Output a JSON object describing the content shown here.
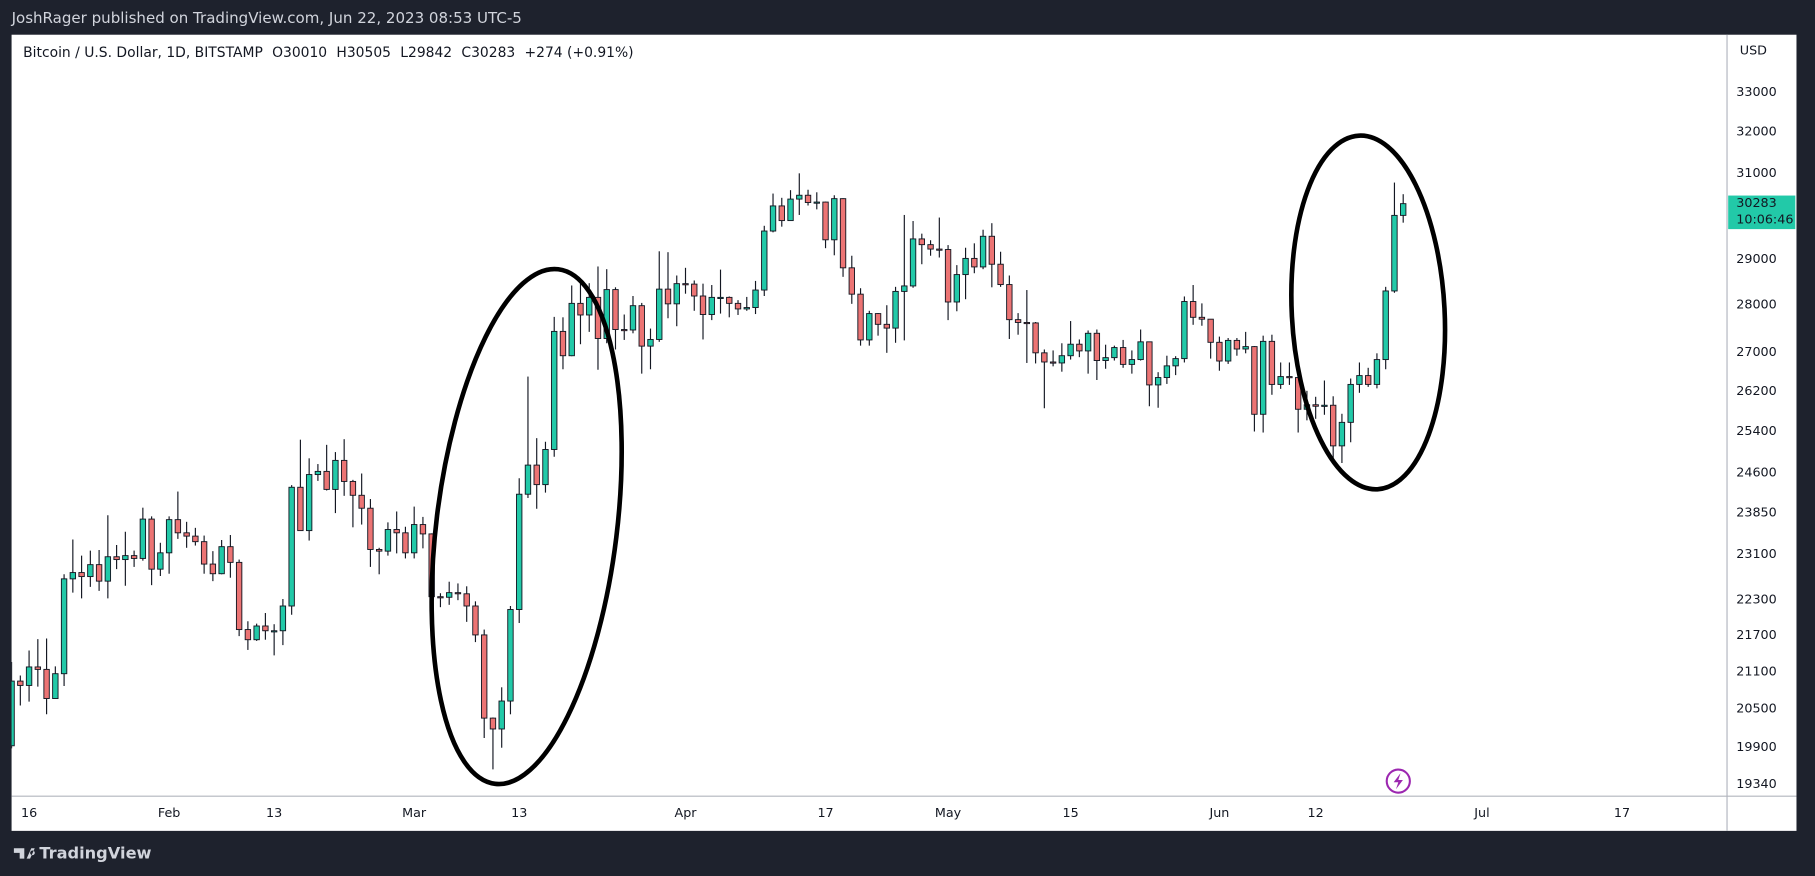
{
  "header": "JoshRager published on TradingView.com, Jun 22, 2023 08:53 UTC-5",
  "footer_brand": "TradingView",
  "chart_data": {
    "type": "candlestick",
    "title": "Bitcoin / U.S. Dollar, 1D, BITSTAMP",
    "ohlc_labels": [
      "O",
      "H",
      "L",
      "C"
    ],
    "change": "+274 (+0.91%)",
    "currency": "USD",
    "countdown": "10:06:46",
    "log_scale": true,
    "grid": false,
    "up_color": "#22c9a8",
    "down_color": "#ec7474",
    "wick_color": "#131722",
    "x": [
      "2023-01-14",
      "2023-01-15",
      "2023-01-16",
      "2023-01-17",
      "2023-01-18",
      "2023-01-19",
      "2023-01-20",
      "2023-01-21",
      "2023-01-22",
      "2023-01-23",
      "2023-01-24",
      "2023-01-25",
      "2023-01-26",
      "2023-01-27",
      "2023-01-28",
      "2023-01-29",
      "2023-01-30",
      "2023-01-31",
      "2023-02-01",
      "2023-02-02",
      "2023-02-03",
      "2023-02-04",
      "2023-02-05",
      "2023-02-06",
      "2023-02-07",
      "2023-02-08",
      "2023-02-09",
      "2023-02-10",
      "2023-02-11",
      "2023-02-12",
      "2023-02-13",
      "2023-02-14",
      "2023-02-15",
      "2023-02-16",
      "2023-02-17",
      "2023-02-18",
      "2023-02-19",
      "2023-02-20",
      "2023-02-21",
      "2023-02-22",
      "2023-02-23",
      "2023-02-24",
      "2023-02-25",
      "2023-02-26",
      "2023-02-27",
      "2023-02-28",
      "2023-03-01",
      "2023-03-02",
      "2023-03-03",
      "2023-03-04",
      "2023-03-05",
      "2023-03-06",
      "2023-03-07",
      "2023-03-08",
      "2023-03-09",
      "2023-03-10",
      "2023-03-11",
      "2023-03-12",
      "2023-03-13",
      "2023-03-14",
      "2023-03-15",
      "2023-03-16",
      "2023-03-17",
      "2023-03-18",
      "2023-03-19",
      "2023-03-20",
      "2023-03-21",
      "2023-03-22",
      "2023-03-23",
      "2023-03-24",
      "2023-03-25",
      "2023-03-26",
      "2023-03-27",
      "2023-03-28",
      "2023-03-29",
      "2023-03-30",
      "2023-03-31",
      "2023-04-01",
      "2023-04-02",
      "2023-04-03",
      "2023-04-04",
      "2023-04-05",
      "2023-04-06",
      "2023-04-07",
      "2023-04-08",
      "2023-04-09",
      "2023-04-10",
      "2023-04-11",
      "2023-04-12",
      "2023-04-13",
      "2023-04-14",
      "2023-04-15",
      "2023-04-16",
      "2023-04-17",
      "2023-04-18",
      "2023-04-19",
      "2023-04-20",
      "2023-04-21",
      "2023-04-22",
      "2023-04-23",
      "2023-04-24",
      "2023-04-25",
      "2023-04-26",
      "2023-04-27",
      "2023-04-28",
      "2023-04-29",
      "2023-04-30",
      "2023-05-01",
      "2023-05-02",
      "2023-05-03",
      "2023-05-04",
      "2023-05-05",
      "2023-05-06",
      "2023-05-07",
      "2023-05-08",
      "2023-05-09",
      "2023-05-10",
      "2023-05-11",
      "2023-05-12",
      "2023-05-13",
      "2023-05-14",
      "2023-05-15",
      "2023-05-16",
      "2023-05-17",
      "2023-05-18",
      "2023-05-19",
      "2023-05-20",
      "2023-05-21",
      "2023-05-22",
      "2023-05-23",
      "2023-05-24",
      "2023-05-25",
      "2023-05-26",
      "2023-05-27",
      "2023-05-28",
      "2023-05-29",
      "2023-05-30",
      "2023-05-31",
      "2023-06-01",
      "2023-06-02",
      "2023-06-03",
      "2023-06-04",
      "2023-06-05",
      "2023-06-06",
      "2023-06-07",
      "2023-06-08",
      "2023-06-09",
      "2023-06-10",
      "2023-06-11",
      "2023-06-12",
      "2023-06-13",
      "2023-06-14",
      "2023-06-15",
      "2023-06-16",
      "2023-06-17",
      "2023-06-18",
      "2023-06-19",
      "2023-06-20",
      "2023-06-21",
      "2023-06-22"
    ],
    "open": [
      19930,
      20950,
      20880,
      21180,
      21140,
      20670,
      21070,
      22670,
      22780,
      22710,
      22920,
      22630,
      23060,
      23010,
      23080,
      23030,
      23740,
      22840,
      23130,
      23730,
      23490,
      23430,
      23330,
      22930,
      22760,
      23240,
      22960,
      21800,
      21630,
      21860,
      21780,
      21780,
      22200,
      24330,
      23530,
      24570,
      24630,
      24290,
      24840,
      24440,
      24180,
      23940,
      23190,
      23160,
      23550,
      23490,
      23130,
      23640,
      23470,
      22360,
      22350,
      22430,
      22410,
      22200,
      21710,
      20360,
      20190,
      20630,
      22140,
      24200,
      24750,
      24380,
      25050,
      27440,
      26930,
      28040,
      27790,
      28170,
      27290,
      28340,
      27480,
      27470,
      27990,
      27130,
      27270,
      28350,
      28030,
      28470,
      28460,
      28200,
      27800,
      28170,
      28170,
      28040,
      27920,
      27950,
      28330,
      29650,
      30230,
      29890,
      30390,
      30480,
      30310,
      30320,
      29450,
      30400,
      28820,
      28240,
      27260,
      27820,
      27590,
      27510,
      28300,
      28420,
      29470,
      29340,
      29240,
      29230,
      28070,
      28670,
      29030,
      28840,
      29530,
      28900,
      28450,
      27690,
      27630,
      27620,
      26990,
      26800,
      26780,
      26930,
      27170,
      27030,
      27400,
      26830,
      26890,
      27100,
      26750,
      26850,
      27220,
      26330,
      26480,
      26720,
      26870,
      28080,
      27740,
      27700,
      27210,
      26820,
      27250,
      27070,
      27120,
      25740,
      27230,
      26340,
      26500,
      26480,
      25840,
      25930,
      25900,
      25920,
      25120,
      25580,
      26340,
      26520,
      26340,
      26850,
      28310,
      30010
    ],
    "high": [
      21260,
      21040,
      21450,
      21640,
      21650,
      21190,
      22750,
      23370,
      23080,
      23170,
      23180,
      23810,
      23270,
      23510,
      23170,
      23950,
      23790,
      23310,
      23790,
      24250,
      23690,
      23580,
      23440,
      23160,
      23360,
      23450,
      23010,
      21940,
      21900,
      22080,
      21890,
      22320,
      24370,
      25240,
      24880,
      24770,
      25140,
      25000,
      25250,
      24470,
      24590,
      24110,
      23220,
      23680,
      23880,
      23600,
      23970,
      23780,
      23480,
      22420,
      22620,
      22590,
      22540,
      22280,
      21800,
      20370,
      20850,
      22200,
      24500,
      26500,
      25270,
      25200,
      27750,
      27740,
      28430,
      28550,
      28480,
      28850,
      28790,
      28390,
      27800,
      28200,
      28050,
      27500,
      29190,
      29170,
      28650,
      28820,
      28540,
      28470,
      28440,
      28780,
      28190,
      28110,
      28180,
      28530,
      29770,
      30520,
      30420,
      30600,
      31000,
      30610,
      30550,
      30330,
      30480,
      30410,
      29090,
      28370,
      27880,
      27830,
      28000,
      28400,
      30020,
      29880,
      29590,
      29440,
      29960,
      29330,
      28880,
      29270,
      29370,
      29680,
      29830,
      29180,
      28650,
      27830,
      28330,
      27640,
      27060,
      27040,
      27190,
      27660,
      27270,
      27460,
      27480,
      27160,
      27140,
      27260,
      27040,
      27480,
      27220,
      26590,
      26930,
      26920,
      28190,
      28440,
      28040,
      27700,
      27330,
      27300,
      27300,
      27430,
      27130,
      27350,
      27370,
      26790,
      26790,
      26520,
      26210,
      26090,
      26420,
      26100,
      25750,
      26460,
      26790,
      26680,
      26980,
      28400,
      30780,
      30505
    ],
    "low": [
      19890,
      20560,
      20620,
      20860,
      20420,
      20670,
      20870,
      22430,
      22330,
      22530,
      22460,
      22330,
      22840,
      22550,
      22880,
      22990,
      22560,
      22720,
      22760,
      23380,
      23220,
      23260,
      22760,
      22630,
      22750,
      22690,
      21690,
      21460,
      21610,
      21630,
      21370,
      21540,
      22050,
      23530,
      23350,
      24450,
      24270,
      23850,
      24170,
      23590,
      23640,
      22880,
      22750,
      23080,
      23120,
      23030,
      23030,
      23210,
      21970,
      22180,
      22220,
      22300,
      21930,
      21590,
      20050,
      19570,
      19900,
      20420,
      21910,
      24130,
      23930,
      24230,
      24910,
      26650,
      26920,
      27170,
      27430,
      26640,
      27190,
      27060,
      27260,
      27400,
      26560,
      26650,
      27220,
      27720,
      27550,
      28250,
      27880,
      27270,
      27680,
      27820,
      27740,
      27790,
      27880,
      27810,
      28200,
      29620,
      29750,
      29880,
      30020,
      30240,
      30150,
      29260,
      29100,
      28620,
      28030,
      27140,
      27140,
      27350,
      26990,
      27200,
      27250,
      28380,
      28900,
      29090,
      29050,
      27680,
      27870,
      28130,
      28700,
      28790,
      28390,
      28400,
      27280,
      27370,
      26780,
      26770,
      25860,
      26710,
      26600,
      26850,
      26900,
      26560,
      26430,
      26660,
      26830,
      26680,
      26560,
      26830,
      25900,
      25870,
      26350,
      26530,
      26790,
      27580,
      27560,
      26870,
      26620,
      26760,
      26930,
      26980,
      25400,
      25380,
      26130,
      26250,
      26330,
      25380,
      25620,
      25650,
      25730,
      24830,
      24790,
      25190,
      26170,
      26290,
      26260,
      26650,
      28270,
      29842
    ],
    "close": [
      20950,
      20880,
      21180,
      21140,
      20670,
      21070,
      22670,
      22780,
      22710,
      22920,
      22630,
      23060,
      23010,
      23080,
      23030,
      23740,
      22840,
      23130,
      23730,
      23490,
      23430,
      23330,
      22930,
      22760,
      23240,
      22960,
      21800,
      21630,
      21860,
      21780,
      21780,
      22200,
      24330,
      23530,
      24570,
      24630,
      24290,
      24840,
      24440,
      24180,
      23940,
      23190,
      23160,
      23550,
      23490,
      23130,
      23640,
      23470,
      22360,
      22350,
      22430,
      22410,
      22200,
      21710,
      20360,
      20190,
      20630,
      22140,
      24200,
      24750,
      24380,
      25050,
      27440,
      26930,
      28040,
      27790,
      28170,
      27290,
      28340,
      27480,
      27470,
      27990,
      27130,
      27270,
      28350,
      28030,
      28470,
      28460,
      28200,
      27800,
      28170,
      28170,
      28040,
      27920,
      27950,
      28330,
      29650,
      30230,
      29890,
      30390,
      30480,
      30310,
      30320,
      29450,
      30400,
      28820,
      28240,
      27260,
      27820,
      27590,
      27510,
      28300,
      28420,
      29470,
      29340,
      29240,
      29230,
      28070,
      28670,
      29030,
      28840,
      29530,
      28900,
      28450,
      27690,
      27630,
      27620,
      26990,
      26800,
      26780,
      26930,
      27170,
      27030,
      27400,
      26830,
      26890,
      27100,
      26750,
      26850,
      27220,
      26330,
      26480,
      26720,
      26870,
      28080,
      27740,
      27700,
      27210,
      26820,
      27250,
      27070,
      27120,
      25740,
      27230,
      26340,
      26500,
      26480,
      25840,
      25930,
      25900,
      25920,
      25120,
      25580,
      26340,
      26520,
      26340,
      26850,
      28310,
      30010,
      30283
    ],
    "xlim": [
      "2023-01-14",
      "2023-07-29"
    ],
    "xticks": [
      {
        "value": "2023-01-16",
        "label": "16"
      },
      {
        "value": "2023-02-01",
        "label": "Feb"
      },
      {
        "value": "2023-02-13",
        "label": "13"
      },
      {
        "value": "2023-03-01",
        "label": "Mar"
      },
      {
        "value": "2023-03-13",
        "label": "13"
      },
      {
        "value": "2023-04-01",
        "label": "Apr"
      },
      {
        "value": "2023-04-17",
        "label": "17"
      },
      {
        "value": "2023-05-01",
        "label": "May"
      },
      {
        "value": "2023-05-15",
        "label": "15"
      },
      {
        "value": "2023-06-01",
        "label": "Jun"
      },
      {
        "value": "2023-06-12",
        "label": "12"
      },
      {
        "value": "2023-07-01",
        "label": "Jul"
      },
      {
        "value": "2023-07-17",
        "label": "17"
      }
    ],
    "ylim": [
      19170,
      34500
    ],
    "yticks": [
      33000,
      32000,
      31000,
      29000,
      28000,
      27000,
      26200,
      25400,
      24600,
      23850,
      23100,
      22300,
      21700,
      21100,
      20500,
      19900,
      19340
    ]
  }
}
